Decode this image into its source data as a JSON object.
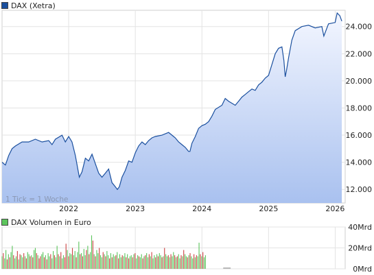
{
  "chart_data": [
    {
      "type": "line",
      "title": "DAX (Xetra)",
      "color": "#1a4f9e",
      "fill_top": "#f3f6ff",
      "fill_bottom": "#a9c1ef",
      "xlim": [
        2021.0,
        2026.15
      ],
      "ylim": [
        11000,
        25200
      ],
      "y_ticks": [
        12000,
        14000,
        16000,
        18000,
        20000,
        22000,
        24000
      ],
      "y_tick_labels": [
        "12.000",
        "14.000",
        "16.000",
        "18.000",
        "20.000",
        "22.000",
        "24.000"
      ],
      "x_ticks": [
        2022,
        2023,
        2024,
        2025,
        2026
      ],
      "x_tick_labels": [
        "2022",
        "2023",
        "2024",
        "2025",
        "2026"
      ],
      "grid": true,
      "legend": "top-left",
      "annotation": "1 Tick = 1 Woche",
      "x": [
        2021.0,
        2021.05,
        2021.1,
        2021.15,
        2021.2,
        2021.3,
        2021.4,
        2021.5,
        2021.6,
        2021.7,
        2021.75,
        2021.8,
        2021.9,
        2021.95,
        2022.0,
        2022.05,
        2022.1,
        2022.13,
        2022.16,
        2022.2,
        2022.25,
        2022.3,
        2022.35,
        2022.4,
        2022.45,
        2022.5,
        2022.55,
        2022.6,
        2022.65,
        2022.7,
        2022.73,
        2022.76,
        2022.8,
        2022.85,
        2022.9,
        2022.95,
        2023.0,
        2023.05,
        2023.1,
        2023.15,
        2023.2,
        2023.25,
        2023.3,
        2023.4,
        2023.5,
        2023.6,
        2023.65,
        2023.7,
        2023.75,
        2023.8,
        2023.82,
        2023.85,
        2023.9,
        2023.95,
        2024.0,
        2024.05,
        2024.1,
        2024.15,
        2024.2,
        2024.3,
        2024.35,
        2024.4,
        2024.5,
        2024.55,
        2024.6,
        2024.65,
        2024.7,
        2024.75,
        2024.8,
        2024.85,
        2024.9,
        2024.95,
        2025.0,
        2025.05,
        2025.1,
        2025.15,
        2025.2,
        2025.23,
        2025.25,
        2025.27,
        2025.3,
        2025.35,
        2025.4,
        2025.5,
        2025.6,
        2025.7,
        2025.8,
        2025.83,
        2025.9,
        2026.0,
        2026.03,
        2026.07,
        2026.1
      ],
      "y": [
        14000,
        13800,
        14500,
        15000,
        15200,
        15500,
        15500,
        15700,
        15500,
        15600,
        15300,
        15700,
        16000,
        15500,
        15900,
        15500,
        14500,
        13700,
        12900,
        13300,
        14300,
        14100,
        14600,
        13900,
        13200,
        12900,
        13200,
        13500,
        12500,
        12200,
        12000,
        12200,
        12900,
        13400,
        14100,
        14000,
        14700,
        15200,
        15500,
        15300,
        15600,
        15800,
        15900,
        16000,
        16200,
        15800,
        15500,
        15300,
        15100,
        14800,
        14800,
        15400,
        15900,
        16500,
        16700,
        16800,
        17000,
        17400,
        17900,
        18200,
        18700,
        18500,
        18200,
        18500,
        18800,
        19000,
        19200,
        19400,
        19300,
        19700,
        19900,
        20200,
        20400,
        21200,
        22000,
        22400,
        22500,
        21500,
        20300,
        20800,
        21700,
        23000,
        23700,
        24000,
        24100,
        23900,
        24000,
        23300,
        24200,
        24300,
        25000,
        24800,
        24400
      ]
    },
    {
      "type": "bar",
      "title": "DAX Volumen in Euro",
      "unit_labels": [
        "0Mrd",
        "20Mrd",
        "40Mrd"
      ],
      "y_ticks": [
        0,
        20,
        40
      ],
      "ylim": [
        0,
        40
      ],
      "xlim": [
        2021.0,
        2026.15
      ],
      "up_color": "#5cc45c",
      "down_color": "#cc4444",
      "x_start": 2021.0,
      "step": 0.0192,
      "values": [
        12,
        15,
        10,
        18,
        9,
        14,
        11,
        16,
        22,
        13,
        10,
        12,
        17,
        9,
        14,
        13,
        11,
        15,
        12,
        10,
        16,
        14,
        12,
        13,
        11,
        18,
        20,
        15,
        13,
        10,
        12,
        14,
        16,
        11,
        13,
        9,
        15,
        12,
        14,
        10,
        17,
        13,
        11,
        22,
        14,
        12,
        16,
        10,
        13,
        11,
        24,
        18,
        12,
        15,
        14,
        20,
        13,
        17,
        11,
        16,
        26,
        14,
        15,
        12,
        19,
        13,
        18,
        22,
        14,
        16,
        32,
        27,
        14,
        12,
        18,
        15,
        20,
        13,
        11,
        16,
        14,
        12,
        17,
        13,
        10,
        15,
        11,
        14,
        12,
        13,
        16,
        10,
        14,
        11,
        13,
        12,
        15,
        11,
        14,
        10,
        12,
        13,
        11,
        14,
        15,
        10,
        13,
        12,
        11,
        14,
        10,
        12,
        13,
        15,
        11,
        14,
        12,
        16,
        10,
        13,
        11,
        14,
        12,
        15,
        13,
        11,
        12,
        20,
        14,
        12,
        13,
        11,
        14,
        12,
        16,
        13,
        11,
        12,
        14,
        10,
        13,
        12,
        18,
        14,
        12,
        11,
        13,
        15,
        12,
        10,
        14,
        11,
        13,
        12,
        25,
        14,
        12,
        16,
        11,
        13
      ],
      "directions": [
        1,
        0,
        1,
        1,
        0,
        1,
        0,
        1,
        1,
        0,
        1,
        1,
        0,
        1,
        0,
        1,
        1,
        0,
        1,
        0,
        1,
        1,
        0,
        1,
        0,
        1,
        1,
        0,
        1,
        0,
        0,
        1,
        1,
        0,
        1,
        0,
        1,
        1,
        0,
        1,
        1,
        0,
        1,
        1,
        0,
        1,
        0,
        1,
        1,
        0,
        0,
        1,
        0,
        1,
        1,
        0,
        1,
        1,
        0,
        1,
        1,
        0,
        1,
        0,
        1,
        1,
        0,
        1,
        0,
        1,
        1,
        0,
        1,
        0,
        1,
        1,
        0,
        1,
        1,
        0,
        1,
        0,
        1,
        1,
        0,
        1,
        0,
        1,
        1,
        0,
        1,
        0,
        1,
        1,
        0,
        1,
        1,
        0,
        1,
        0,
        1,
        1,
        0,
        1,
        0,
        1,
        1,
        0,
        1,
        1,
        0,
        1,
        0,
        1,
        1,
        0,
        1,
        0,
        1,
        1,
        0,
        1,
        0,
        1,
        1,
        0,
        1,
        0,
        1,
        1,
        0,
        1,
        0,
        1,
        1,
        0,
        1,
        0,
        1,
        1,
        0,
        1,
        0,
        1,
        1,
        0,
        1,
        0,
        1,
        1,
        0,
        1,
        0,
        1,
        1,
        0,
        1,
        0,
        1,
        1
      ],
      "extra_markers": [
        2024.35,
        2024.4
      ]
    }
  ]
}
